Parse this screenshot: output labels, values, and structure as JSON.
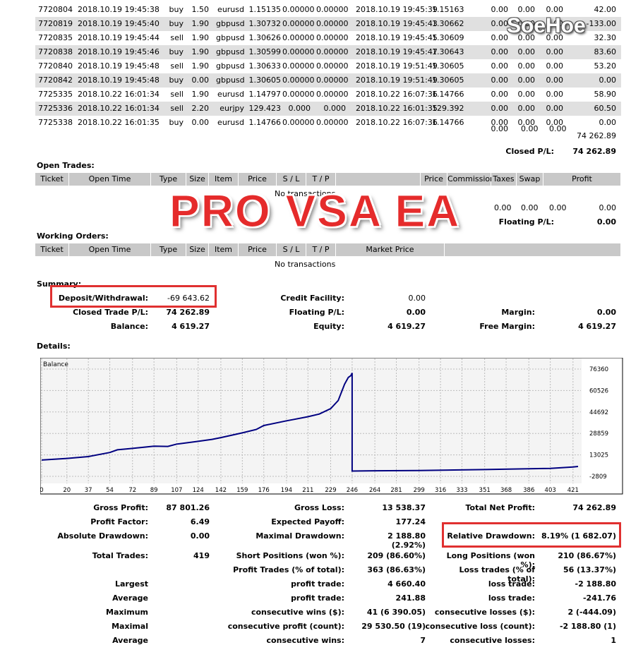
{
  "closed_trades": [
    [
      "7720804",
      "2018.10.19 19:45:38",
      "buy",
      "1.50",
      "eurusd",
      "1.15135",
      "0.00000",
      "0.00000",
      "2018.10.19 19:45:39",
      "1.15163",
      "0.00",
      "0.00",
      "0.00",
      "42.00"
    ],
    [
      "7720819",
      "2018.10.19 19:45:40",
      "buy",
      "1.90",
      "gbpusd",
      "1.30732",
      "0.00000",
      "0.00000",
      "2018.10.19 19:45:43",
      "1.30662",
      "0.00",
      "0.00",
      "0.00",
      "-133.00"
    ],
    [
      "7720835",
      "2018.10.19 19:45:44",
      "sell",
      "1.90",
      "gbpusd",
      "1.30626",
      "0.00000",
      "0.00000",
      "2018.10.19 19:45:45",
      "1.30609",
      "0.00",
      "0.00",
      "0.00",
      "32.30"
    ],
    [
      "7720838",
      "2018.10.19 19:45:46",
      "buy",
      "1.90",
      "gbpusd",
      "1.30599",
      "0.00000",
      "0.00000",
      "2018.10.19 19:45:47",
      "1.30643",
      "0.00",
      "0.00",
      "0.00",
      "83.60"
    ],
    [
      "7720840",
      "2018.10.19 19:45:48",
      "sell",
      "1.90",
      "gbpusd",
      "1.30633",
      "0.00000",
      "0.00000",
      "2018.10.19 19:51:49",
      "1.30605",
      "0.00",
      "0.00",
      "0.00",
      "53.20"
    ],
    [
      "7720842",
      "2018.10.19 19:45:48",
      "buy",
      "0.00",
      "gbpusd",
      "1.30605",
      "0.00000",
      "0.00000",
      "2018.10.19 19:51:49",
      "1.30605",
      "0.00",
      "0.00",
      "0.00",
      "0.00"
    ],
    [
      "7725335",
      "2018.10.22 16:01:34",
      "sell",
      "1.90",
      "eurusd",
      "1.14797",
      "0.00000",
      "0.00000",
      "2018.10.22 16:07:36",
      "1.14766",
      "0.00",
      "0.00",
      "0.00",
      "58.90"
    ],
    [
      "7725336",
      "2018.10.22 16:01:34",
      "sell",
      "2.20",
      "eurjpy",
      "129.423",
      "0.000",
      "0.000",
      "2018.10.22 16:01:35",
      "129.392",
      "0.00",
      "0.00",
      "0.00",
      "60.50"
    ],
    [
      "7725338",
      "2018.10.22 16:01:35",
      "buy",
      "0.00",
      "eurusd",
      "1.14766",
      "0.00000",
      "0.00000",
      "2018.10.22 16:07:36",
      "1.14766",
      "0.00",
      "0.00",
      "0.00",
      "0.00"
    ]
  ],
  "closed_totals": {
    "c1": "0.00",
    "c2": "0.00",
    "c3": "0.00",
    "profit": "74 262.89",
    "label": "Closed P/L:",
    "value": "74 262.89"
  },
  "open_trades": {
    "title": "Open Trades:",
    "headers": [
      "Ticket",
      "Open Time",
      "Type",
      "Size",
      "Item",
      "Price",
      "S / L",
      "T / P",
      "",
      "Price",
      "Commission",
      "Taxes",
      "Swap",
      "Profit"
    ],
    "empty": "No transactions",
    "totals": {
      "c1": "0.00",
      "c2": "0.00",
      "c3": "0.00",
      "profit": "0.00"
    },
    "floating_label": "Floating P/L:",
    "floating_value": "0.00"
  },
  "working_orders": {
    "title": "Working Orders:",
    "headers": [
      "Ticket",
      "Open Time",
      "Type",
      "Size",
      "Item",
      "Price",
      "S / L",
      "T / P",
      "Market Price",
      ""
    ],
    "empty": "No transactions"
  },
  "summary": {
    "title": "Summary:",
    "deposit_label": "Deposit/Withdrawal:",
    "deposit_value": "-69 643.62",
    "credit_label": "Credit Facility:",
    "credit_value": "0.00",
    "closed_label": "Closed Trade P/L:",
    "closed_value": "74 262.89",
    "floating_label": "Floating P/L:",
    "floating_value": "0.00",
    "margin_label": "Margin:",
    "margin_value": "0.00",
    "balance_label": "Balance:",
    "balance_value": "4 619.27",
    "equity_label": "Equity:",
    "equity_value": "4 619.27",
    "free_margin_label": "Free Margin:",
    "free_margin_value": "4 619.27"
  },
  "details_title": "Details:",
  "watermark": "PRO VSA EA",
  "logo": "SoeHoe",
  "chart_data": {
    "type": "line",
    "title": "Balance",
    "y_ticks": [
      "76360",
      "60526",
      "44692",
      "28859",
      "13025",
      "-2809"
    ],
    "x_ticks": [
      "0",
      "20",
      "37",
      "54",
      "72",
      "89",
      "107",
      "124",
      "142",
      "159",
      "176",
      "194",
      "211",
      "229",
      "246",
      "264",
      "281",
      "299",
      "316",
      "333",
      "351",
      "368",
      "386",
      "403",
      "421"
    ],
    "ylim": [
      -2809,
      76360
    ],
    "xlim": [
      0,
      425
    ],
    "x": [
      0,
      20,
      37,
      54,
      60,
      72,
      89,
      100,
      107,
      124,
      135,
      142,
      159,
      170,
      176,
      194,
      200,
      211,
      220,
      229,
      235,
      240,
      243,
      245,
      246,
      246,
      264,
      299,
      351,
      403,
      421,
      425
    ],
    "y": [
      9200,
      10400,
      11800,
      14800,
      16800,
      17800,
      19500,
      19300,
      21000,
      23000,
      24500,
      25800,
      29300,
      31800,
      34700,
      38200,
      39200,
      41200,
      43200,
      47200,
      53200,
      65200,
      70200,
      71500,
      73500,
      1100,
      1300,
      1500,
      2200,
      3100,
      4100,
      4500
    ],
    "line_color": "#000080",
    "grid": true
  },
  "stats": {
    "gross_profit_label": "Gross Profit:",
    "gross_profit": "87 801.26",
    "gross_loss_label": "Gross Loss:",
    "gross_loss": "13 538.37",
    "total_net_label": "Total Net Profit:",
    "total_net": "74 262.89",
    "profit_factor_label": "Profit Factor:",
    "profit_factor": "6.49",
    "expected_payoff_label": "Expected Payoff:",
    "expected_payoff": "177.24",
    "abs_dd_label": "Absolute Drawdown:",
    "abs_dd": "0.00",
    "max_dd_label": "Maximal Drawdown:",
    "max_dd": "2 188.80 (2.92%)",
    "rel_dd_label": "Relative Drawdown:",
    "rel_dd": "8.19% (1 682.07)",
    "total_trades_label": "Total Trades:",
    "total_trades": "419",
    "short_label": "Short Positions (won %):",
    "short": "209 (86.60%)",
    "long_label": "Long Positions (won %):",
    "long": "210 (86.67%)",
    "profit_trades_label": "Profit Trades (% of total):",
    "profit_trades": "363 (86.63%)",
    "loss_trades_label": "Loss trades (% of total):",
    "loss_trades": "56 (13.37%)",
    "largest_label": "Largest",
    "largest_profit_label": "profit trade:",
    "largest_profit": "4 660.40",
    "largest_loss_label": "loss trade:",
    "largest_loss": "-2 188.80",
    "average_label": "Average",
    "average_profit_label": "profit trade:",
    "average_profit": "241.88",
    "average_loss_label": "loss trade:",
    "average_loss": "-241.76",
    "maximum_label": "Maximum",
    "max_cons_wins_label": "consecutive wins ($):",
    "max_cons_wins": "41 (6 390.05)",
    "max_cons_losses_label": "consecutive losses ($):",
    "max_cons_losses": "2 (-444.09)",
    "maximal_label": "Maximal",
    "maximal_profit_label": "consecutive profit (count):",
    "maximal_profit": "29 530.50 (19)",
    "maximal_loss_label": "consecutive loss (count):",
    "maximal_loss": "-2 188.80 (1)",
    "avg2_label": "Average",
    "avg_wins_label": "consecutive wins:",
    "avg_wins": "7",
    "avg_losses_label": "consecutive losses:",
    "avg_losses": "1"
  }
}
